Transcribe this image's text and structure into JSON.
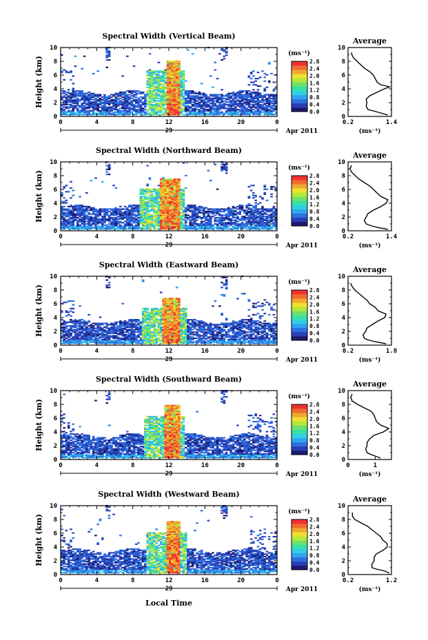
{
  "figure": {
    "xlabel": "Local Time",
    "day_label": "29",
    "month_label": "Apr 2011",
    "unit_label": "(ms⁻¹)",
    "avg_title": "Average"
  },
  "colorbar": {
    "ticks": [
      "2.8",
      "2.4",
      "2.0",
      "1.6",
      "1.2",
      "0.8",
      "0.4",
      "0.0"
    ],
    "colors": [
      "#1b1b6e",
      "#2a3fb5",
      "#2f6fe0",
      "#2fa5f0",
      "#2fd0e0",
      "#35e0a5",
      "#6fe06a",
      "#b5e83a",
      "#f0e030",
      "#f0a830",
      "#f06a30",
      "#f03030"
    ]
  },
  "chart_data": [
    {
      "type": "heatmap",
      "title": "Spectral Width (Vertical Beam)",
      "ylabel": "Height (km)",
      "xlabel": "Local Time",
      "x_ticks": [
        "0",
        "4",
        "8",
        "12",
        "16",
        "20",
        "0"
      ],
      "y_ticks": [
        "0",
        "2",
        "4",
        "6",
        "8",
        "10"
      ],
      "xlim": [
        0,
        24
      ],
      "ylim": [
        0,
        10
      ],
      "clim": [
        0.0,
        2.8
      ],
      "core": {
        "start": 11.6,
        "end": 13.0,
        "top": 8.0
      },
      "profile": {
        "title": "Average",
        "xlabel": "(ms⁻¹)",
        "x_ticks": [
          "0.2",
          "1.4"
        ],
        "xlim": [
          0.2,
          1.4
        ],
        "y_ticks": [
          "0",
          "2",
          "4",
          "6",
          "8",
          "10"
        ],
        "heights": [
          0.2,
          0.5,
          0.8,
          1.0,
          1.5,
          2.0,
          2.5,
          3.0,
          3.5,
          4.0,
          4.3,
          4.6,
          5.0,
          5.5,
          6.0,
          6.5,
          7.0,
          7.5,
          8.0,
          8.5,
          9.0,
          9.3
        ],
        "values": [
          1.3,
          1.1,
          0.9,
          0.75,
          0.7,
          0.72,
          0.7,
          0.8,
          1.0,
          1.2,
          1.35,
          1.1,
          1.0,
          0.95,
          0.9,
          0.8,
          0.65,
          0.55,
          0.45,
          0.35,
          0.3,
          0.3
        ]
      }
    },
    {
      "type": "heatmap",
      "title": "Spectral Width (Northward Beam)",
      "ylabel": "Height (km)",
      "xlabel": "Local Time",
      "x_ticks": [
        "0",
        "4",
        "8",
        "12",
        "16",
        "20",
        "0"
      ],
      "y_ticks": [
        "0",
        "2",
        "4",
        "6",
        "8",
        "10"
      ],
      "xlim": [
        0,
        24
      ],
      "ylim": [
        0,
        10
      ],
      "clim": [
        0.0,
        2.8
      ],
      "core": {
        "start": 10.8,
        "end": 13.0,
        "top": 7.5
      },
      "profile": {
        "title": "Average",
        "xlabel": "(ms⁻¹)",
        "x_ticks": [
          "0.2",
          "1.4"
        ],
        "xlim": [
          0.2,
          1.4
        ],
        "y_ticks": [
          "0",
          "2",
          "4",
          "6",
          "8",
          "10"
        ],
        "heights": [
          0.2,
          0.5,
          0.8,
          1.0,
          1.5,
          2.0,
          2.5,
          3.0,
          3.5,
          4.0,
          4.5,
          5.0,
          5.5,
          6.0,
          6.5,
          7.0,
          7.5,
          8.0,
          8.5,
          9.0,
          9.5
        ],
        "values": [
          1.3,
          1.0,
          0.8,
          0.7,
          0.65,
          0.7,
          0.75,
          0.9,
          1.1,
          1.25,
          1.3,
          1.1,
          1.0,
          0.9,
          0.8,
          0.65,
          0.5,
          0.4,
          0.3,
          0.25,
          0.3
        ]
      }
    },
    {
      "type": "heatmap",
      "title": "Spectral Width (Eastward Beam)",
      "ylabel": "Height (km)",
      "xlabel": "Local Time",
      "x_ticks": [
        "0",
        "4",
        "8",
        "12",
        "16",
        "20",
        "0"
      ],
      "y_ticks": [
        "0",
        "2",
        "4",
        "6",
        "8",
        "10"
      ],
      "xlim": [
        0,
        24
      ],
      "ylim": [
        0,
        10
      ],
      "clim": [
        0.0,
        2.8
      ],
      "core": {
        "start": 11.2,
        "end": 13.2,
        "top": 6.8
      },
      "profile": {
        "title": "Average",
        "xlabel": "(ms⁻¹)",
        "x_ticks": [
          "0.2",
          "1.8"
        ],
        "xlim": [
          0.2,
          1.8
        ],
        "y_ticks": [
          "0",
          "2",
          "4",
          "6",
          "8",
          "10"
        ],
        "heights": [
          0.2,
          0.5,
          0.8,
          1.0,
          1.5,
          2.0,
          2.5,
          3.0,
          3.5,
          4.0,
          4.5,
          5.0,
          5.5,
          6.0,
          6.5,
          7.0,
          7.5,
          8.0,
          8.5,
          9.0
        ],
        "values": [
          1.6,
          1.2,
          0.9,
          0.8,
          0.75,
          0.85,
          0.9,
          1.1,
          1.3,
          1.55,
          1.6,
          1.3,
          1.2,
          1.0,
          0.9,
          0.75,
          0.6,
          0.45,
          0.35,
          0.3
        ]
      }
    },
    {
      "type": "heatmap",
      "title": "Spectral Width (Southward Beam)",
      "ylabel": "Height (km)",
      "xlabel": "Local Time",
      "x_ticks": [
        "0",
        "4",
        "8",
        "12",
        "16",
        "20",
        "0"
      ],
      "y_ticks": [
        "0",
        "2",
        "4",
        "6",
        "8",
        "10"
      ],
      "xlim": [
        0,
        24
      ],
      "ylim": [
        0,
        10
      ],
      "clim": [
        0.0,
        2.8
      ],
      "core": {
        "start": 11.4,
        "end": 13.0,
        "top": 7.8
      },
      "profile": {
        "title": "Average",
        "xlabel": "(ms⁻¹)",
        "x_ticks": [
          "0",
          "1"
        ],
        "xlim": [
          0,
          1.6
        ],
        "y_ticks": [
          "0",
          "2",
          "4",
          "6",
          "8",
          "10"
        ],
        "heights": [
          0.2,
          0.5,
          0.8,
          1.0,
          1.5,
          2.0,
          2.5,
          3.0,
          3.5,
          4.0,
          4.5,
          5.0,
          5.5,
          6.0,
          6.5,
          7.0,
          7.5,
          8.0,
          8.5,
          9.0,
          9.5
        ],
        "values": [
          1.2,
          1.0,
          0.8,
          0.7,
          0.65,
          0.7,
          0.7,
          0.8,
          0.95,
          1.3,
          1.5,
          1.2,
          1.05,
          1.0,
          0.95,
          0.85,
          0.6,
          0.35,
          0.15,
          0.1,
          0.15
        ]
      }
    },
    {
      "type": "heatmap",
      "title": "Spectral Width (Westward Beam)",
      "ylabel": "Height (km)",
      "xlabel": "Local Time",
      "x_ticks": [
        "0",
        "4",
        "8",
        "12",
        "16",
        "20",
        "0"
      ],
      "y_ticks": [
        "0",
        "2",
        "4",
        "6",
        "8",
        "10"
      ],
      "xlim": [
        0,
        24
      ],
      "ylim": [
        0,
        10
      ],
      "clim": [
        0.0,
        2.8
      ],
      "core": {
        "start": 11.6,
        "end": 13.2,
        "top": 7.6
      },
      "profile": {
        "title": "Average",
        "xlabel": "(ms⁻¹)",
        "x_ticks": [
          "0.2",
          "1.2"
        ],
        "xlim": [
          0.2,
          1.2
        ],
        "y_ticks": [
          "0",
          "2",
          "4",
          "6",
          "8",
          "10"
        ],
        "heights": [
          0.2,
          0.5,
          0.8,
          1.0,
          1.5,
          2.0,
          2.5,
          3.0,
          3.5,
          4.0,
          4.5,
          5.0,
          5.5,
          6.0,
          6.5,
          7.0,
          7.5,
          8.0,
          8.5,
          9.0
        ],
        "values": [
          1.15,
          1.05,
          0.85,
          0.75,
          0.75,
          0.8,
          0.8,
          0.85,
          1.0,
          1.1,
          1.1,
          1.0,
          0.95,
          0.85,
          0.75,
          0.65,
          0.5,
          0.35,
          0.3,
          0.3
        ]
      }
    }
  ]
}
